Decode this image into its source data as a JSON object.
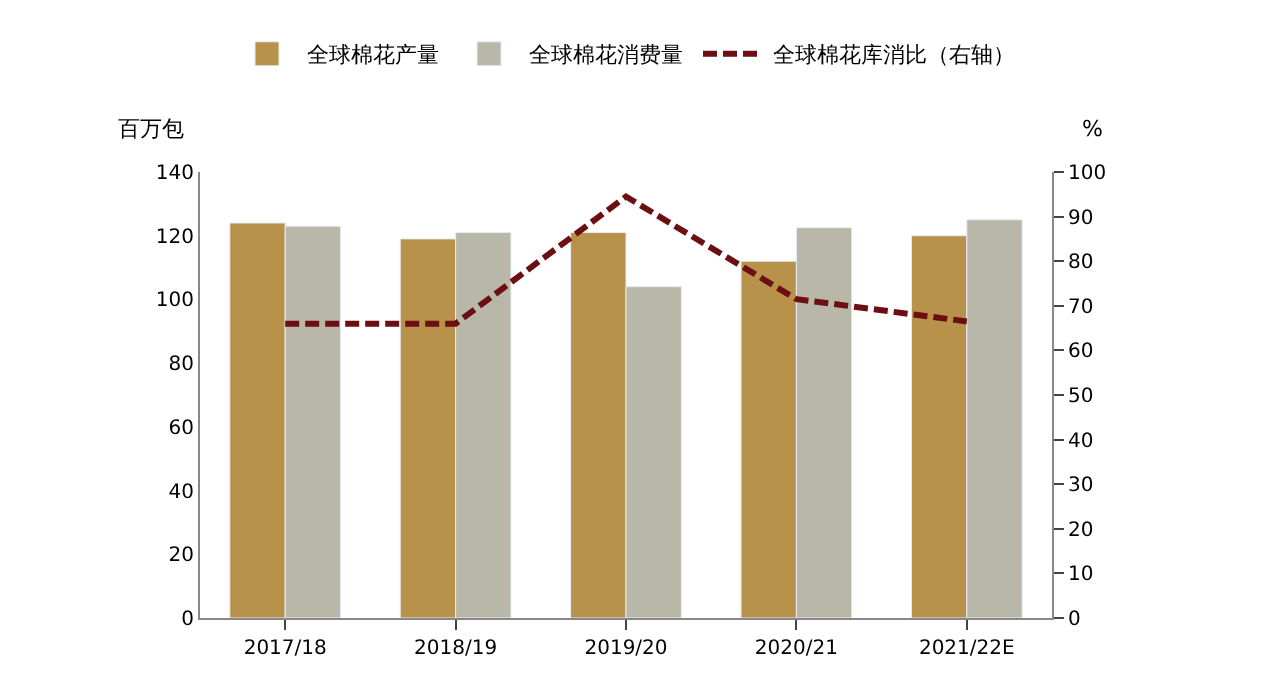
{
  "chart_data": {
    "type": "bar",
    "categories": [
      "2017/18",
      "2018/19",
      "2019/20",
      "2020/21",
      "2021/22E"
    ],
    "series": [
      {
        "name": "全球棉花产量",
        "color": "#b8924a",
        "values": [
          124,
          119,
          121,
          112,
          120
        ]
      },
      {
        "name": "全球棉花消费量",
        "color": "#b9b8a8",
        "values": [
          123,
          121,
          104,
          122.5,
          125
        ]
      },
      {
        "name": "全球棉花库消比（右轴）",
        "type": "line",
        "axis": "y2",
        "color": "#6b0f12",
        "line_style": "dashed",
        "marker": "none",
        "values": [
          66,
          66,
          94.5,
          71.5,
          66.5
        ]
      }
    ],
    "ylabel": "百万包",
    "y2label": "%",
    "ylim": [
      0,
      140
    ],
    "yticks": [
      0,
      20,
      40,
      60,
      80,
      100,
      120,
      140
    ],
    "y2lim": [
      0,
      100
    ],
    "y2ticks": [
      0,
      10,
      20,
      30,
      40,
      50,
      60,
      70,
      80,
      90,
      100
    ],
    "legend": "top"
  }
}
